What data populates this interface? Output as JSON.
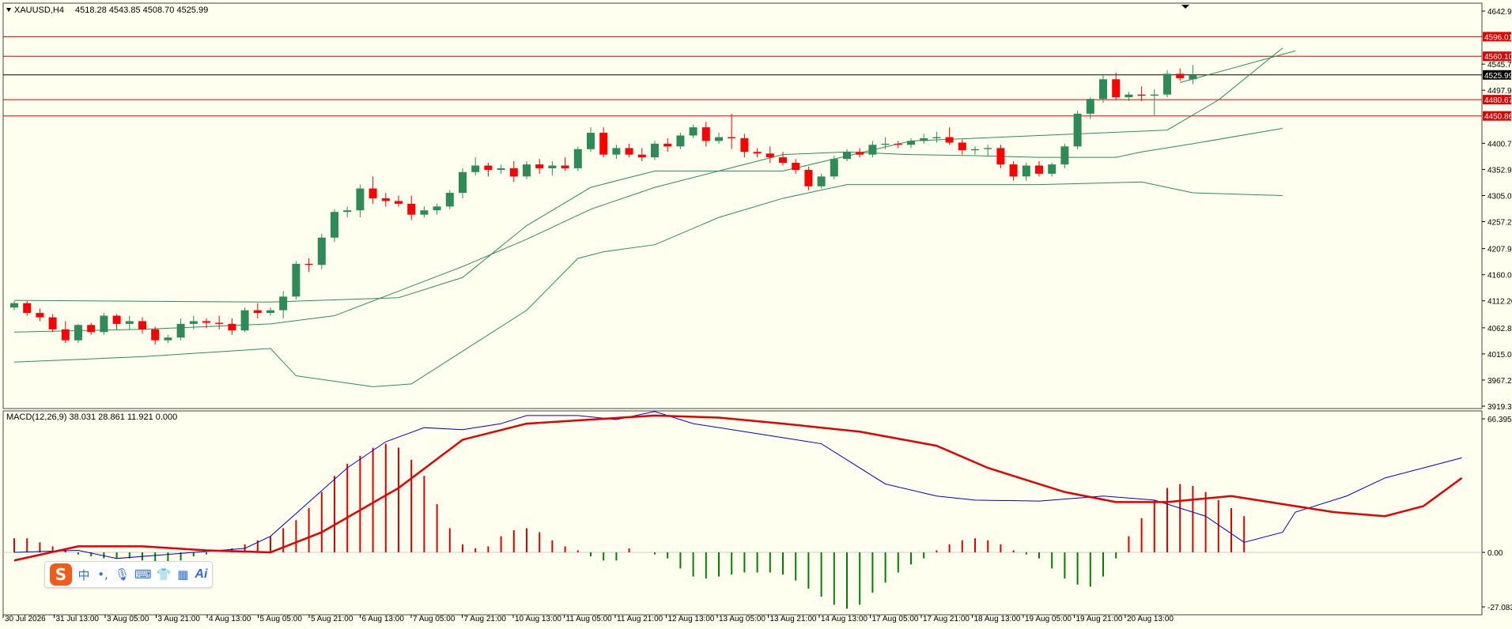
{
  "header": {
    "symbol": "XAUUSD,H4",
    "ohlc": "4518.28 4543.85 4508.70 4525.99"
  },
  "macd": {
    "label": "MACD(12,26,9) 38.031 28.861 11.921 0.000"
  },
  "colors": {
    "background": "#fffff0",
    "bull": "#2e8b57",
    "bear": "#ff0000",
    "band": "#2e8b57",
    "macd_line": "#0000cd",
    "signal_line": "#e00000",
    "hist_pos": "#e00000",
    "hist_neg": "#008000",
    "hline": "#e00000",
    "price_line": "#000000"
  },
  "chart_data": [
    {
      "type": "candlestick",
      "ylim": [
        3919.35,
        4642.9
      ],
      "y_ticks": [
        "4642.90",
        "4545.75",
        "4497.90",
        "4400.75",
        "4352.90",
        "4305.05",
        "4257.25",
        "4207.90",
        "4160.05",
        "4112.20",
        "4062.80",
        "4015.05",
        "3967.20",
        "3919.35"
      ],
      "x_ticks": [
        "30 Jul 2026",
        "31 Jul 13:00",
        "3 Aug 05:00",
        "3 Aug 21:00",
        "4 Aug 13:00",
        "5 Aug 05:00",
        "5 Aug 21:00",
        "6 Aug 13:00",
        "7 Aug 05:00",
        "7 Aug 21:00",
        "10 Aug 13:00",
        "11 Aug 05:00",
        "11 Aug 21:00",
        "12 Aug 13:00",
        "13 Aug 05:00",
        "13 Aug 21:00",
        "14 Aug 13:00",
        "17 Aug 05:00",
        "17 Aug 21:00",
        "18 Aug 13:00",
        "19 Aug 05:00",
        "19 Aug 21:00",
        "20 Aug 13:00"
      ],
      "price_labels": [
        {
          "value": 4596.01,
          "label": "4596.01",
          "kind": "level"
        },
        {
          "value": 4560.1,
          "label": "4560.10",
          "kind": "level"
        },
        {
          "value": 4525.99,
          "label": "4525.99",
          "kind": "current"
        },
        {
          "value": 4480.67,
          "label": "4480.67",
          "kind": "level"
        },
        {
          "value": 4450.86,
          "label": "4450.86",
          "kind": "level"
        }
      ],
      "candles": [
        [
          4100,
          4112,
          4095,
          4108
        ],
        [
          4108,
          4112,
          4085,
          4090
        ],
        [
          4090,
          4098,
          4075,
          4082
        ],
        [
          4082,
          4088,
          4055,
          4060
        ],
        [
          4060,
          4075,
          4035,
          4040
        ],
        [
          4040,
          4070,
          4035,
          4068
        ],
        [
          4068,
          4072,
          4050,
          4055
        ],
        [
          4055,
          4090,
          4050,
          4085
        ],
        [
          4085,
          4088,
          4060,
          4070
        ],
        [
          4070,
          4085,
          4060,
          4075
        ],
        [
          4075,
          4082,
          4052,
          4060
        ],
        [
          4060,
          4065,
          4032,
          4040
        ],
        [
          4040,
          4050,
          4035,
          4045
        ],
        [
          4045,
          4080,
          4040,
          4070
        ],
        [
          4070,
          4085,
          4060,
          4075
        ],
        [
          4075,
          4080,
          4062,
          4072
        ],
        [
          4072,
          4085,
          4060,
          4070
        ],
        [
          4070,
          4080,
          4050,
          4058
        ],
        [
          4058,
          4100,
          4055,
          4095
        ],
        [
          4095,
          4108,
          4080,
          4090
        ],
        [
          4090,
          4100,
          4085,
          4095
        ],
        [
          4095,
          4130,
          4080,
          4120
        ],
        [
          4120,
          4185,
          4115,
          4180
        ],
        [
          4180,
          4190,
          4165,
          4178
        ],
        [
          4178,
          4235,
          4170,
          4228
        ],
        [
          4228,
          4280,
          4220,
          4275
        ],
        [
          4275,
          4285,
          4265,
          4278
        ],
        [
          4278,
          4325,
          4265,
          4318
        ],
        [
          4318,
          4340,
          4290,
          4300
        ],
        [
          4300,
          4310,
          4285,
          4295
        ],
        [
          4295,
          4305,
          4285,
          4290
        ],
        [
          4290,
          4305,
          4260,
          4270
        ],
        [
          4270,
          4285,
          4265,
          4278
        ],
        [
          4278,
          4290,
          4270,
          4285
        ],
        [
          4285,
          4315,
          4280,
          4310
        ],
        [
          4310,
          4355,
          4300,
          4348
        ],
        [
          4348,
          4375,
          4342,
          4360
        ],
        [
          4360,
          4365,
          4340,
          4352
        ],
        [
          4352,
          4362,
          4345,
          4355
        ],
        [
          4355,
          4368,
          4330,
          4340
        ],
        [
          4340,
          4368,
          4335,
          4362
        ],
        [
          4362,
          4372,
          4345,
          4355
        ],
        [
          4355,
          4368,
          4342,
          4360
        ],
        [
          4360,
          4375,
          4350,
          4355
        ],
        [
          4355,
          4395,
          4350,
          4390
        ],
        [
          4390,
          4430,
          4385,
          4420
        ],
        [
          4420,
          4430,
          4375,
          4380
        ],
        [
          4380,
          4398,
          4372,
          4392
        ],
        [
          4392,
          4400,
          4375,
          4380
        ],
        [
          4380,
          4392,
          4368,
          4375
        ],
        [
          4375,
          4405,
          4370,
          4400
        ],
        [
          4400,
          4410,
          4385,
          4395
        ],
        [
          4395,
          4420,
          4390,
          4415
        ],
        [
          4415,
          4435,
          4410,
          4430
        ],
        [
          4430,
          4440,
          4395,
          4405
        ],
        [
          4405,
          4420,
          4400,
          4412
        ],
        [
          4412,
          4455,
          4390,
          4410
        ],
        [
          4410,
          4418,
          4375,
          4385
        ],
        [
          4385,
          4392,
          4375,
          4382
        ],
        [
          4382,
          4395,
          4365,
          4375
        ],
        [
          4375,
          4385,
          4360,
          4365
        ],
        [
          4365,
          4372,
          4345,
          4352
        ],
        [
          4352,
          4358,
          4315,
          4322
        ],
        [
          4322,
          4345,
          4318,
          4340
        ],
        [
          4340,
          4378,
          4335,
          4372
        ],
        [
          4372,
          4390,
          4368,
          4385
        ],
        [
          4385,
          4392,
          4375,
          4380
        ],
        [
          4380,
          4405,
          4375,
          4398
        ],
        [
          4398,
          4412,
          4390,
          4400
        ],
        [
          4400,
          4405,
          4392,
          4398
        ],
        [
          4398,
          4410,
          4392,
          4405
        ],
        [
          4405,
          4418,
          4400,
          4410
        ],
        [
          4410,
          4422,
          4402,
          4412
        ],
        [
          4412,
          4430,
          4398,
          4402
        ],
        [
          4402,
          4408,
          4380,
          4388
        ],
        [
          4388,
          4395,
          4380,
          4390
        ],
        [
          4390,
          4398,
          4378,
          4392
        ],
        [
          4392,
          4398,
          4355,
          4362
        ],
        [
          4362,
          4368,
          4332,
          4340
        ],
        [
          4340,
          4365,
          4332,
          4360
        ],
        [
          4360,
          4368,
          4340,
          4345
        ],
        [
          4345,
          4365,
          4340,
          4362
        ],
        [
          4362,
          4400,
          4355,
          4395
        ],
        [
          4395,
          4460,
          4390,
          4455
        ],
        [
          4455,
          4485,
          4445,
          4482
        ],
        [
          4482,
          4525,
          4475,
          4518
        ],
        [
          4518,
          4530,
          4480,
          4485
        ],
        [
          4485,
          4495,
          4478,
          4490
        ],
        [
          4490,
          4505,
          4478,
          4488
        ],
        [
          4488,
          4500,
          4450,
          4490
        ],
        [
          4490,
          4535,
          4485,
          4528
        ],
        [
          4528,
          4538,
          4515,
          4520
        ],
        [
          4518,
          4544,
          4509,
          4526
        ]
      ],
      "bollinger": {
        "upper": [
          [
            0,
            4113
          ],
          [
            20,
            4110
          ],
          [
            30,
            4118
          ],
          [
            35,
            4155
          ],
          [
            40,
            4250
          ],
          [
            45,
            4320
          ],
          [
            50,
            4350
          ],
          [
            60,
            4350
          ],
          [
            70,
            4405
          ],
          [
            80,
            4415
          ],
          [
            90,
            4425
          ],
          [
            94,
            4480
          ],
          [
            99,
            4575
          ]
        ],
        "middle": [
          [
            0,
            4055
          ],
          [
            10,
            4060
          ],
          [
            20,
            4070
          ],
          [
            25,
            4085
          ],
          [
            30,
            4130
          ],
          [
            35,
            4175
          ],
          [
            40,
            4225
          ],
          [
            45,
            4280
          ],
          [
            50,
            4320
          ],
          [
            55,
            4350
          ],
          [
            60,
            4380
          ],
          [
            65,
            4385
          ],
          [
            70,
            4380
          ],
          [
            75,
            4378
          ],
          [
            80,
            4375
          ],
          [
            86,
            4375
          ],
          [
            88,
            4385
          ],
          [
            92,
            4400
          ],
          [
            99,
            4428
          ]
        ],
        "lower": [
          [
            0,
            4000
          ],
          [
            10,
            4010
          ],
          [
            20,
            4025
          ],
          [
            22,
            3975
          ],
          [
            28,
            3955
          ],
          [
            31,
            3960
          ],
          [
            35,
            4020
          ],
          [
            40,
            4095
          ],
          [
            44,
            4190
          ],
          [
            46,
            4202
          ],
          [
            50,
            4215
          ],
          [
            55,
            4265
          ],
          [
            60,
            4300
          ],
          [
            65,
            4325
          ],
          [
            70,
            4325
          ],
          [
            80,
            4325
          ],
          [
            88,
            4330
          ],
          [
            92,
            4310
          ],
          [
            99,
            4305
          ]
        ]
      }
    },
    {
      "type": "macd",
      "ylim": [
        -27.083,
        66.395
      ],
      "y_ticks": [
        "66.395",
        "0.00",
        "-27.083"
      ],
      "histogram": [
        7,
        7,
        5,
        3,
        2,
        -1,
        -2,
        -3,
        -3,
        -3,
        -4,
        -5,
        -6,
        -4,
        -2,
        -1,
        0,
        2,
        4,
        6,
        8,
        12,
        16,
        22,
        30,
        38,
        44,
        48,
        52,
        54,
        52,
        46,
        38,
        24,
        12,
        4,
        2,
        3,
        8,
        11,
        12,
        10,
        6,
        3,
        1,
        -2,
        -4,
        -4,
        2,
        0,
        -1,
        -3,
        -8,
        -12,
        -13,
        -12,
        -11,
        -10,
        -10,
        -10,
        -11,
        -14,
        -18,
        -22,
        -26,
        -28,
        -26,
        -20,
        -15,
        -10,
        -6,
        -3,
        1,
        4,
        6,
        7,
        6,
        4,
        1,
        -1,
        -3,
        -8,
        -13,
        -16,
        -17,
        -12,
        -3,
        8,
        17,
        26,
        32,
        34,
        33,
        30,
        26,
        22,
        18
      ],
      "macd_line": [
        [
          0,
          0.0
        ],
        [
          5,
          1.0
        ],
        [
          8,
          -3.0
        ],
        [
          12,
          -1.0
        ],
        [
          18,
          2.0
        ],
        [
          20,
          8.0
        ],
        [
          23,
          25.0
        ],
        [
          26,
          42.0
        ],
        [
          29,
          55.0
        ],
        [
          32,
          62.0
        ],
        [
          35,
          61.0
        ],
        [
          38,
          64.0
        ],
        [
          40,
          68.0
        ],
        [
          44,
          68.0
        ],
        [
          47,
          66.0
        ],
        [
          50,
          70.0
        ],
        [
          53,
          64.0
        ],
        [
          57,
          60.0
        ],
        [
          60,
          57.0
        ],
        [
          63,
          54.0
        ],
        [
          65,
          46.0
        ],
        [
          68,
          34.0
        ],
        [
          72,
          28.0
        ],
        [
          75,
          26.0
        ],
        [
          80,
          25.5
        ],
        [
          85,
          28.0
        ],
        [
          89,
          26.0
        ],
        [
          93,
          18.0
        ],
        [
          96,
          5.0
        ],
        [
          99,
          10.0
        ],
        [
          100,
          20.0
        ],
        [
          104,
          28.0
        ],
        [
          107,
          37.0
        ],
        [
          110,
          42.0
        ],
        [
          113,
          47.0
        ]
      ],
      "signal_line": [
        [
          0,
          -4.0
        ],
        [
          5,
          3.0
        ],
        [
          10,
          3.0
        ],
        [
          15,
          1.0
        ],
        [
          20,
          0.0
        ],
        [
          24,
          10.0
        ],
        [
          30,
          32.0
        ],
        [
          35,
          56.0
        ],
        [
          40,
          64.0
        ],
        [
          45,
          66.0
        ],
        [
          50,
          68.0
        ],
        [
          55,
          67.0
        ],
        [
          60,
          64.0
        ],
        [
          66,
          60.0
        ],
        [
          72,
          53.0
        ],
        [
          76,
          42.0
        ],
        [
          82,
          30.0
        ],
        [
          86,
          25.0
        ],
        [
          90,
          25.0
        ],
        [
          95,
          28.0
        ],
        [
          98,
          25.0
        ],
        [
          103,
          20.0
        ],
        [
          107,
          18.0
        ],
        [
          110,
          23.0
        ],
        [
          113,
          37.0
        ]
      ]
    }
  ]
}
